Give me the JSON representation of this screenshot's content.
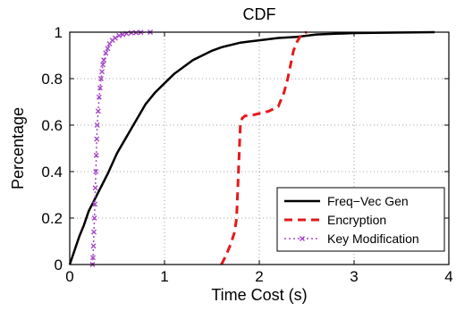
{
  "chart_data": {
    "type": "line",
    "title": "CDF",
    "xlabel": "Time Cost (s)",
    "ylabel": "Percentage",
    "xlim": [
      0,
      4
    ],
    "ylim": [
      0,
      1
    ],
    "xticks": [
      0,
      1,
      2,
      3,
      4
    ],
    "xtick_labels": [
      "0",
      "1",
      "2",
      "3",
      "4"
    ],
    "yticks": [
      0,
      0.2,
      0.4,
      0.6,
      0.8,
      1
    ],
    "ytick_labels": [
      "0",
      "0.2",
      "0.4",
      "0.6",
      "0.8",
      "1"
    ],
    "grid": true,
    "legend_position": "bottom-right",
    "series": [
      {
        "name": "Freq−Vec Gen",
        "color": "#000000",
        "style": "solid",
        "marker": "none",
        "x": [
          0.0,
          0.05,
          0.1,
          0.15,
          0.2,
          0.3,
          0.4,
          0.5,
          0.6,
          0.7,
          0.8,
          0.9,
          1.0,
          1.1,
          1.2,
          1.3,
          1.4,
          1.5,
          1.6,
          1.7,
          1.8,
          1.9,
          2.0,
          2.2,
          2.4,
          2.6,
          2.8,
          3.0,
          3.4,
          3.85
        ],
        "y": [
          0.0,
          0.06,
          0.12,
          0.17,
          0.23,
          0.31,
          0.39,
          0.48,
          0.55,
          0.62,
          0.69,
          0.74,
          0.78,
          0.82,
          0.85,
          0.88,
          0.9,
          0.92,
          0.935,
          0.945,
          0.955,
          0.96,
          0.965,
          0.975,
          0.98,
          0.99,
          0.993,
          0.996,
          0.998,
          1.0
        ]
      },
      {
        "name": "Encryption",
        "color": "#e31a1c",
        "style": "dashed",
        "marker": "none",
        "x": [
          1.6,
          1.65,
          1.7,
          1.74,
          1.76,
          1.78,
          1.8,
          1.82,
          1.85,
          1.9,
          2.0,
          2.1,
          2.2,
          2.26,
          2.3,
          2.33,
          2.36,
          2.4,
          2.43,
          2.46,
          2.5
        ],
        "y": [
          0.0,
          0.04,
          0.09,
          0.14,
          0.2,
          0.4,
          0.6,
          0.63,
          0.64,
          0.64,
          0.65,
          0.66,
          0.68,
          0.74,
          0.8,
          0.86,
          0.92,
          0.96,
          0.98,
          0.995,
          1.0
        ]
      },
      {
        "name": "Key Modification",
        "color": "#a64ac9",
        "style": "dotted",
        "marker": "x",
        "x": [
          0.24,
          0.245,
          0.25,
          0.255,
          0.26,
          0.265,
          0.27,
          0.275,
          0.28,
          0.285,
          0.29,
          0.3,
          0.31,
          0.32,
          0.33,
          0.34,
          0.35,
          0.36,
          0.38,
          0.4,
          0.42,
          0.45,
          0.48,
          0.52,
          0.56,
          0.6,
          0.65,
          0.7,
          0.75,
          0.85
        ],
        "y": [
          0.0,
          0.03,
          0.08,
          0.14,
          0.2,
          0.26,
          0.33,
          0.4,
          0.47,
          0.54,
          0.6,
          0.66,
          0.72,
          0.76,
          0.8,
          0.83,
          0.86,
          0.88,
          0.91,
          0.93,
          0.95,
          0.965,
          0.975,
          0.985,
          0.99,
          0.994,
          0.997,
          0.998,
          0.999,
          1.0
        ]
      }
    ]
  }
}
